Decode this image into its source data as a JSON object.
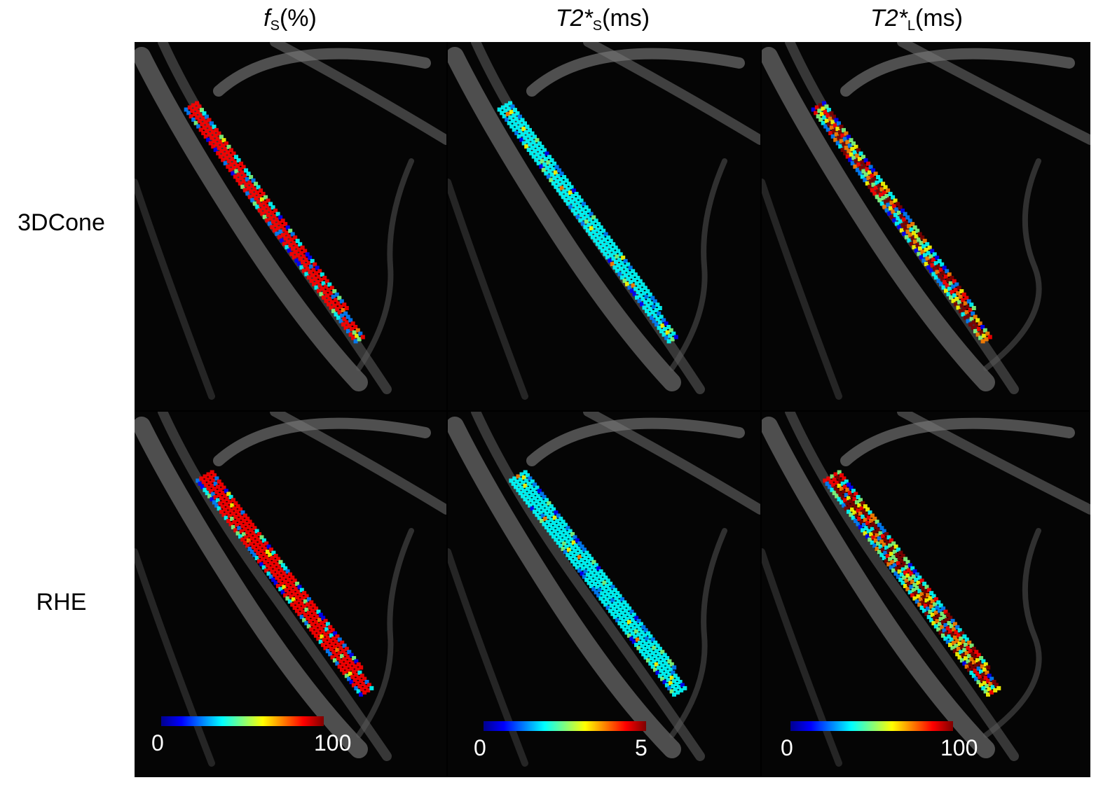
{
  "columns": [
    {
      "key": "fs",
      "title_main": "f",
      "title_sub": "S",
      "title_tail": "(%)"
    },
    {
      "key": "t2s",
      "title_main": "T2*",
      "title_sub": "S",
      "title_tail": "(ms)"
    },
    {
      "key": "t2l",
      "title_main": "T2*",
      "title_sub": "L",
      "title_tail": "(ms)"
    }
  ],
  "rows": [
    {
      "key": "cone",
      "label": "3DCone"
    },
    {
      "key": "rhe",
      "label": "RHE"
    }
  ],
  "colorbars": [
    {
      "min": "0",
      "max": "100"
    },
    {
      "min": "0",
      "max": "5"
    },
    {
      "min": "0",
      "max": "100"
    }
  ],
  "colors": {
    "jet": [
      "#00008f",
      "#0000ff",
      "#007fff",
      "#00ffff",
      "#7fff7f",
      "#ffff00",
      "#ff7f00",
      "#ff0000",
      "#7f0000"
    ],
    "background": "#050505"
  }
}
